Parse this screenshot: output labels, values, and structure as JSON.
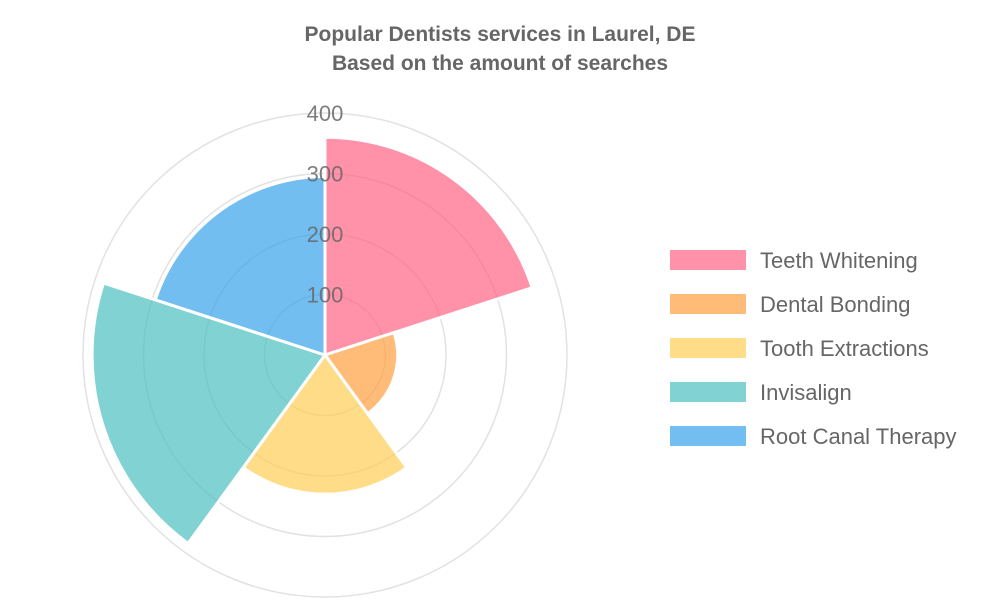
{
  "chart_data": {
    "type": "polarArea",
    "title": [
      "Popular Dentists services in Laurel, DE",
      "Based on the amount of searches"
    ],
    "categories": [
      "Teeth Whitening",
      "Dental Bonding",
      "Tooth Extractions",
      "Invisalign",
      "Root Canal Therapy"
    ],
    "values": [
      360,
      120,
      230,
      385,
      295
    ],
    "colors": [
      "#ff6384",
      "#ff9f40",
      "#ffcd56",
      "#4bc0c0",
      "#36a2eb"
    ],
    "rlim": [
      0,
      400
    ],
    "ticks": [
      "100",
      "200",
      "300",
      "400"
    ],
    "tick_values": [
      100,
      200,
      300,
      400
    ],
    "grid": true,
    "legend_position": "right"
  }
}
